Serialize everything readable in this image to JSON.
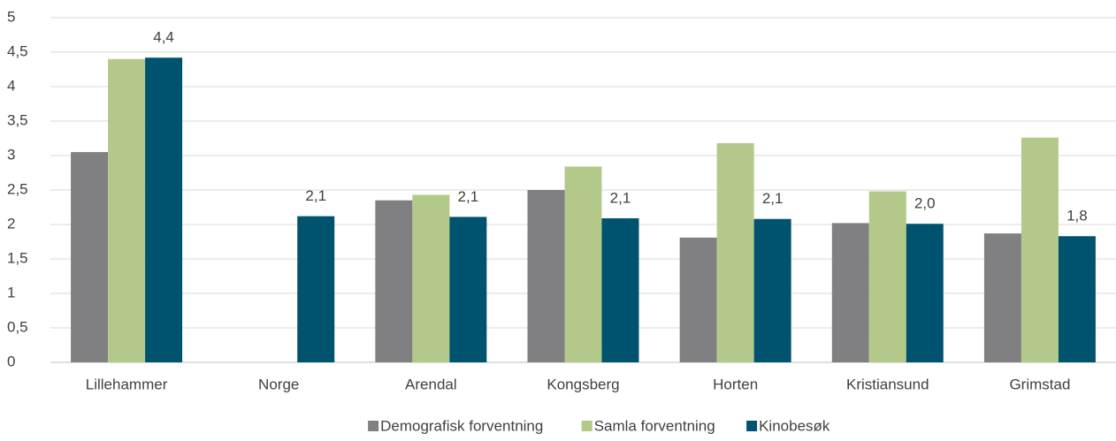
{
  "chart_data": {
    "type": "bar",
    "categories": [
      "Lillehammer",
      "Norge",
      "Arendal",
      "Kongsberg",
      "Horten",
      "Kristiansund",
      "Grimstad"
    ],
    "series": [
      {
        "name": "Demografisk forventning",
        "color": "#808083",
        "values": [
          3.05,
          null,
          2.35,
          2.5,
          1.81,
          2.02,
          1.87
        ]
      },
      {
        "name": "Samla forventning",
        "color": "#b3c98a",
        "values": [
          4.4,
          null,
          2.43,
          2.84,
          3.18,
          2.48,
          3.26
        ]
      },
      {
        "name": "Kinobesøk",
        "color": "#00536e",
        "values": [
          4.42,
          2.12,
          2.11,
          2.09,
          2.08,
          2.01,
          1.83
        ],
        "value_labels": [
          "4,4",
          "2,1",
          "2,1",
          "2,1",
          "2,1",
          "2,0",
          "1,8"
        ]
      }
    ],
    "ylim": [
      0,
      5
    ],
    "yticks": [
      0,
      {
        "value": 0.5,
        "label": "0,5"
      },
      1,
      {
        "value": 1.5,
        "label": "1,5"
      },
      2,
      {
        "value": 2.5,
        "label": "2,5"
      },
      3,
      {
        "value": 3.5,
        "label": "3,5"
      },
      4,
      {
        "value": 4.5,
        "label": "4,5"
      },
      5
    ],
    "grid": true,
    "legend": "bottom"
  }
}
